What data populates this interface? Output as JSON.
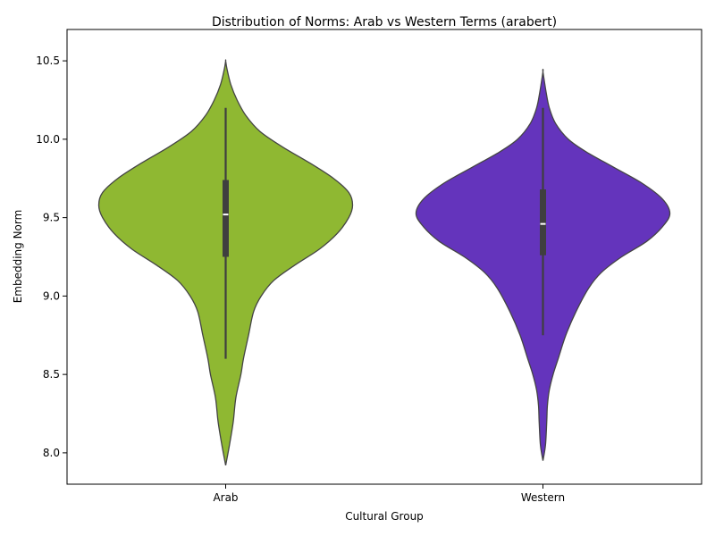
{
  "chart_data": {
    "type": "violin",
    "title": "Distribution of Norms: Arab vs Western Terms (arabert)",
    "xlabel": "Cultural Group",
    "ylabel": "Embedding Norm",
    "categories": [
      "Arab",
      "Western"
    ],
    "ylim": [
      7.8,
      10.7
    ],
    "yticks": [
      8.0,
      8.5,
      9.0,
      9.5,
      10.0,
      10.5
    ],
    "ytick_labels": [
      "8.0",
      "8.5",
      "9.0",
      "9.5",
      "10.0",
      "10.5"
    ],
    "grid": false,
    "legend": "none",
    "series": [
      {
        "category": "Arab",
        "color": "#8fb832",
        "median": 9.52,
        "q1": 9.25,
        "q3": 9.74,
        "whisker_low": 8.6,
        "whisker_high": 10.2,
        "range": [
          7.92,
          10.5
        ],
        "density": [
          [
            7.92,
            0.0
          ],
          [
            8.05,
            0.03
          ],
          [
            8.2,
            0.06
          ],
          [
            8.35,
            0.08
          ],
          [
            8.5,
            0.12
          ],
          [
            8.6,
            0.14
          ],
          [
            8.75,
            0.18
          ],
          [
            8.9,
            0.22
          ],
          [
            9.0,
            0.28
          ],
          [
            9.1,
            0.38
          ],
          [
            9.2,
            0.55
          ],
          [
            9.3,
            0.74
          ],
          [
            9.4,
            0.88
          ],
          [
            9.5,
            0.97
          ],
          [
            9.58,
            1.0
          ],
          [
            9.66,
            0.97
          ],
          [
            9.75,
            0.85
          ],
          [
            9.85,
            0.66
          ],
          [
            9.95,
            0.45
          ],
          [
            10.05,
            0.27
          ],
          [
            10.15,
            0.16
          ],
          [
            10.25,
            0.09
          ],
          [
            10.35,
            0.04
          ],
          [
            10.45,
            0.01
          ],
          [
            10.5,
            0.0
          ]
        ]
      },
      {
        "category": "Western",
        "color": "#6434bc",
        "median": 9.46,
        "q1": 9.26,
        "q3": 9.68,
        "whisker_low": 8.75,
        "whisker_high": 10.2,
        "range": [
          7.95,
          10.43
        ],
        "density": [
          [
            7.95,
            0.0
          ],
          [
            8.05,
            0.02
          ],
          [
            8.2,
            0.03
          ],
          [
            8.3,
            0.035
          ],
          [
            8.4,
            0.05
          ],
          [
            8.5,
            0.08
          ],
          [
            8.6,
            0.12
          ],
          [
            8.75,
            0.18
          ],
          [
            8.9,
            0.26
          ],
          [
            9.05,
            0.36
          ],
          [
            9.15,
            0.46
          ],
          [
            9.25,
            0.62
          ],
          [
            9.35,
            0.82
          ],
          [
            9.45,
            0.95
          ],
          [
            9.53,
            1.0
          ],
          [
            9.62,
            0.94
          ],
          [
            9.72,
            0.78
          ],
          [
            9.82,
            0.56
          ],
          [
            9.92,
            0.34
          ],
          [
            10.0,
            0.2
          ],
          [
            10.1,
            0.1
          ],
          [
            10.2,
            0.05
          ],
          [
            10.3,
            0.025
          ],
          [
            10.43,
            0.0
          ]
        ]
      }
    ]
  }
}
